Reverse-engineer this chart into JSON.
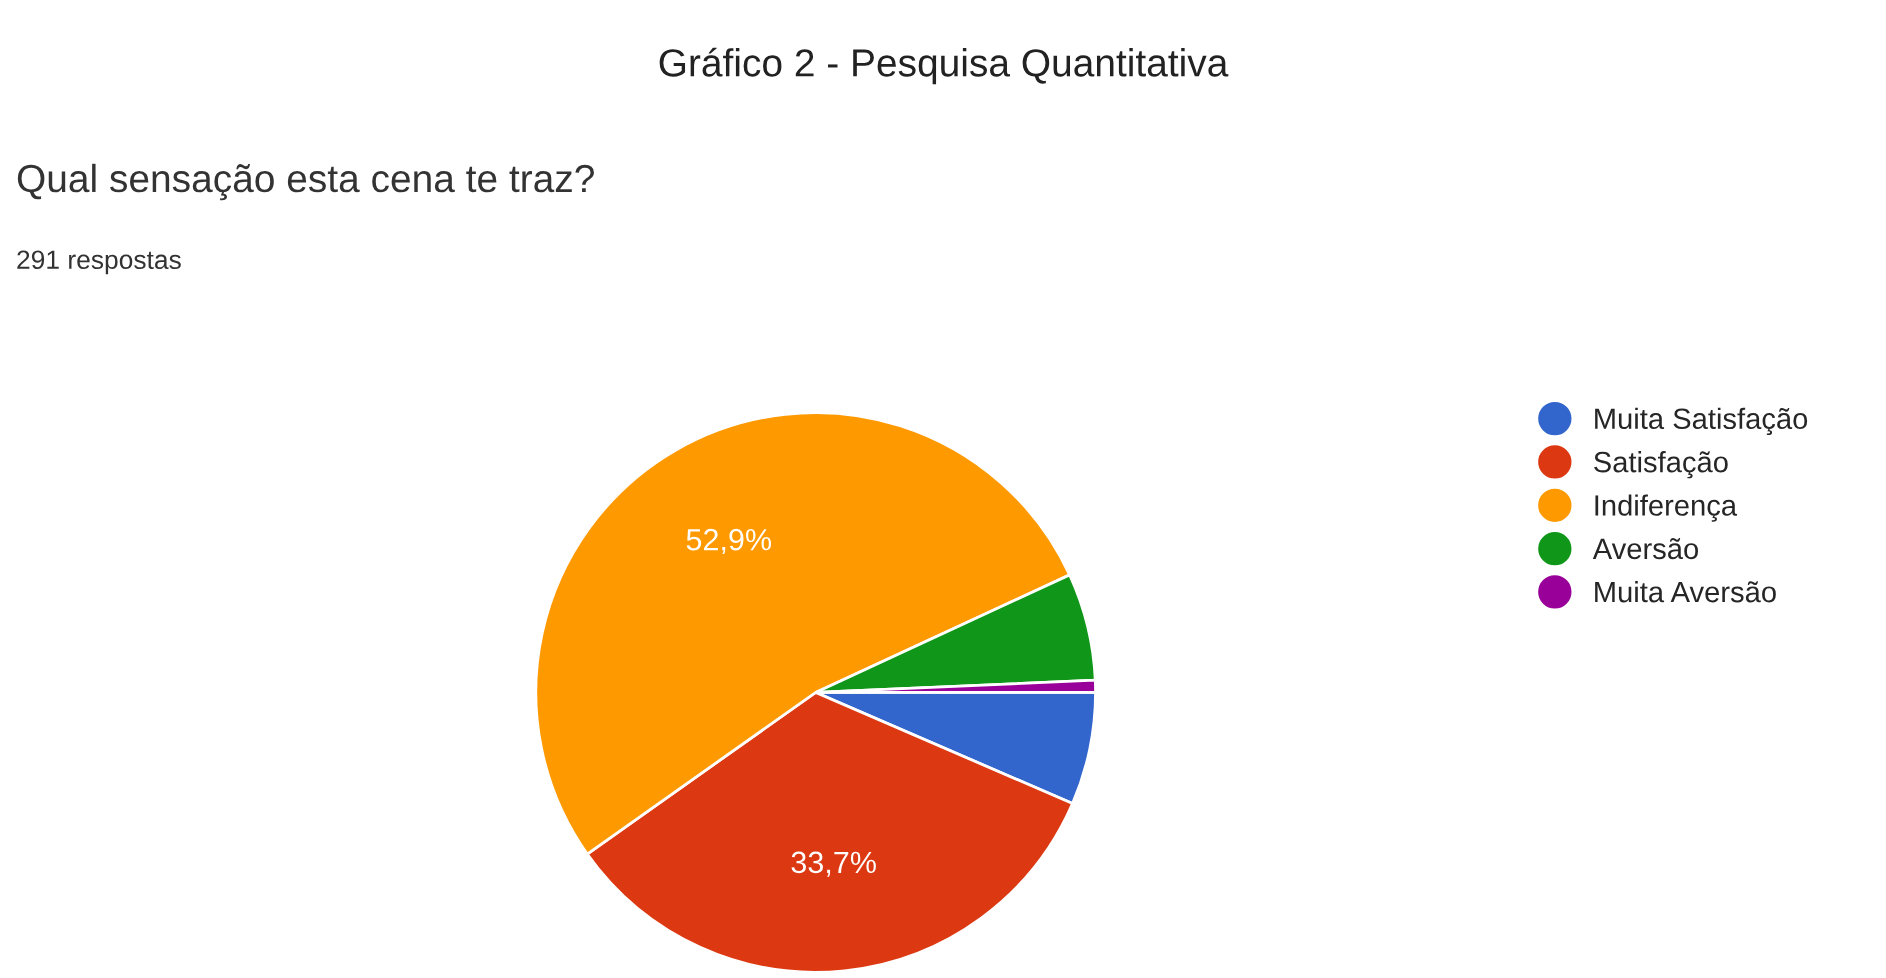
{
  "chart_data": {
    "type": "pie",
    "title": "Gráfico 2 - Pesquisa Quantitativa",
    "subtitle": "Qual sensação esta cena te traz?",
    "annotations": [
      "291 respostas"
    ],
    "categories": [
      "Muita Satisfação",
      "Satisfação",
      "Indiferença",
      "Aversão",
      "Muita Aversão"
    ],
    "values": [
      6.5,
      33.7,
      52.9,
      6.2,
      0.7
    ],
    "value_labels": [
      null,
      "33,7%",
      "52,9%",
      null,
      null
    ],
    "colors": [
      "#3366cc",
      "#dc3912",
      "#ff9900",
      "#109618",
      "#990099"
    ],
    "legend": "right"
  }
}
